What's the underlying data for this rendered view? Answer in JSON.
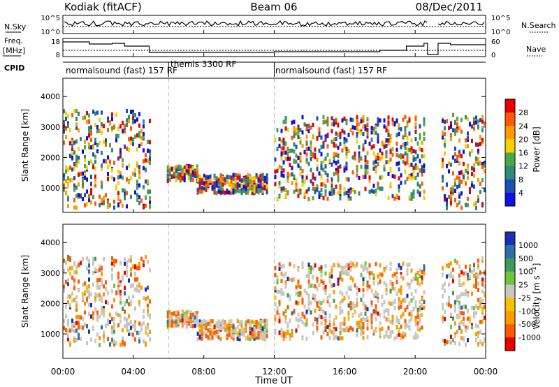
{
  "header": {
    "station": "Kodiak (fitACF)",
    "beam": "Beam 06",
    "date": "08/Dec/2011"
  },
  "panel_labels": {
    "nsky": "N.Sky",
    "freq": "Freq.",
    "freq_unit": "[MHz]",
    "cpid": "CPID",
    "nsearch": "N.Search",
    "nave": "Nave"
  },
  "top_axes": {
    "noise_ticks_left": [
      "10^5",
      "10^0"
    ],
    "noise_ticks_right": [
      "10^5",
      "10^0"
    ],
    "freq_ticks": [
      "18",
      "8"
    ],
    "nave_ticks": [
      "60",
      "0"
    ]
  },
  "cpid_segments": [
    {
      "label": "normalsound (fast) 157 RF",
      "start_h": 0.0,
      "end_h": 6.0
    },
    {
      "label": "themis 3300 RF",
      "start_h": 6.0,
      "end_h": 12.0
    },
    {
      "label": "normalsound (fast) 157 RF",
      "start_h": 12.0,
      "end_h": 24.0
    }
  ],
  "chart_data": [
    {
      "type": "heatmap",
      "name": "power",
      "x_range_hours": [
        0,
        24
      ],
      "ylabel": "Slant Range [km]",
      "ylim": [
        200,
        4600
      ],
      "yticks": [
        1000,
        2000,
        3000,
        4000
      ],
      "colorbar": {
        "label": "Power [dB]",
        "ticks": [
          "28",
          "24",
          "20",
          "16",
          "12",
          "8",
          "4"
        ],
        "colors": [
          "#e60000",
          "#ff5a00",
          "#ff9a00",
          "#f2d200",
          "#4aa84a",
          "#2e8a7a",
          "#1d4fb0",
          "#1010e0"
        ]
      },
      "echo_regions_hours_km": [
        {
          "start": 0.0,
          "end": 4.9,
          "low": 400,
          "high": 3600
        },
        {
          "start": 5.9,
          "end": 7.6,
          "low": 1300,
          "high": 1800
        },
        {
          "start": 7.6,
          "end": 11.6,
          "low": 900,
          "high": 1500
        },
        {
          "start": 12.0,
          "end": 20.5,
          "low": 700,
          "high": 3400
        },
        {
          "start": 21.5,
          "end": 23.9,
          "low": 400,
          "high": 3500
        }
      ]
    },
    {
      "type": "heatmap",
      "name": "velocity",
      "x_range_hours": [
        0,
        24
      ],
      "ylabel": "Slant Range [km]",
      "xlabel": "Time UT",
      "ylim": [
        200,
        4600
      ],
      "yticks": [
        1000,
        2000,
        3000,
        4000
      ],
      "xticks": [
        "00:00",
        "04:00",
        "08:00",
        "12:00",
        "16:00",
        "20:00",
        "00:00"
      ],
      "colorbar": {
        "label": "Velocity [m s^-1]",
        "ticks": [
          "1000",
          "500",
          "100",
          "25",
          "-25",
          "-100",
          "-500",
          "-1000"
        ],
        "colors": [
          "#1a2fb4",
          "#2f6fa8",
          "#3d9a5a",
          "#6cc63a",
          "#c8c8c0",
          "#f2c400",
          "#ff9a00",
          "#ff5a00",
          "#e60000"
        ]
      },
      "echo_regions_hours_km": [
        {
          "start": 0.0,
          "end": 4.9,
          "low": 700,
          "high": 3600
        },
        {
          "start": 5.9,
          "end": 7.6,
          "low": 1300,
          "high": 1800
        },
        {
          "start": 7.6,
          "end": 11.6,
          "low": 900,
          "high": 1500
        },
        {
          "start": 12.0,
          "end": 20.5,
          "low": 900,
          "high": 3400
        },
        {
          "start": 21.5,
          "end": 23.9,
          "low": 700,
          "high": 3600
        }
      ]
    }
  ]
}
